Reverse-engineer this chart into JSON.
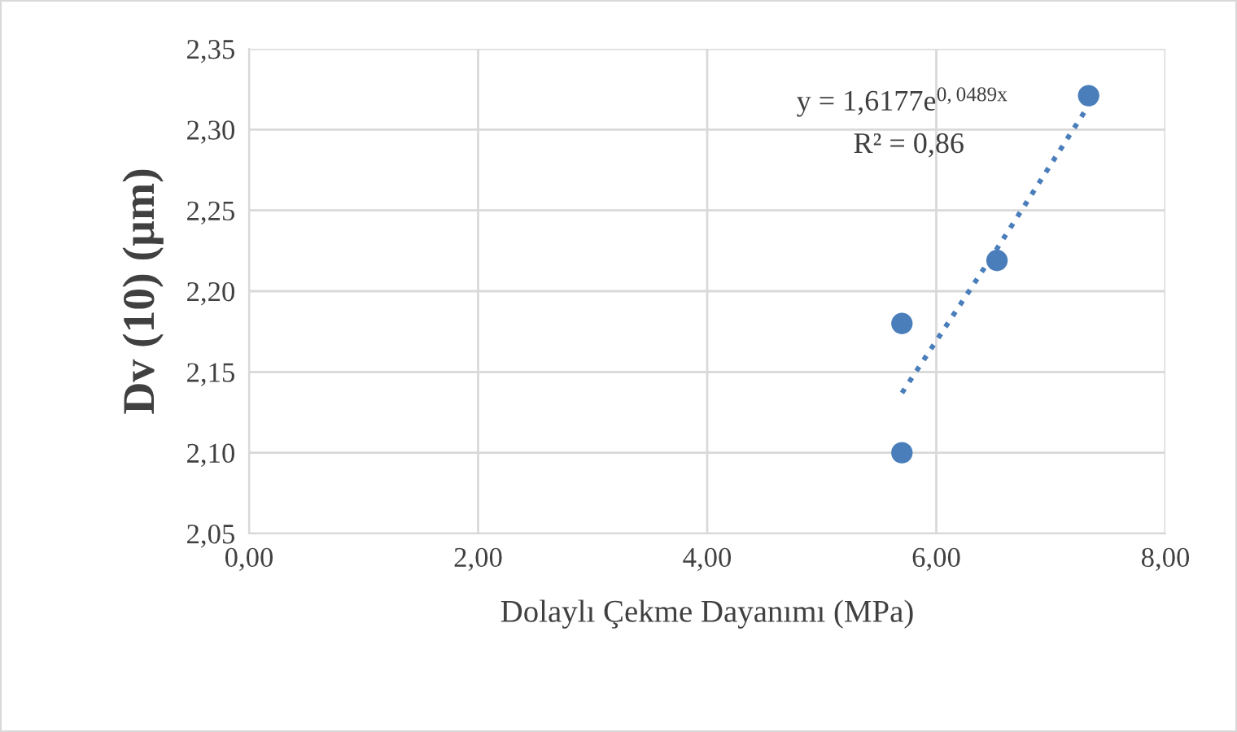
{
  "chart_data": {
    "type": "scatter",
    "xlabel": "Dolaylı Çekme Dayanımı (MPa)",
    "ylabel": "Dv (10) (µm)",
    "x": [
      5.7,
      5.7,
      6.53,
      7.33
    ],
    "series": [
      {
        "color": "#4a7ebb",
        "values": [
          2.18,
          2.1,
          2.219,
          2.321
        ],
        "marker": "circle"
      },
      {
        "type": "line",
        "color": "#4a7ebb",
        "x": [
          5.7,
          6.5,
          7.33
        ],
        "values": [
          2.137,
          2.223,
          2.315
        ],
        "line_style": "dotted",
        "marker": "none"
      }
    ],
    "annotations": [
      "y = 1,6177e$^{0,0489x}$",
      "R² = 0,86"
    ],
    "xlim": [
      0,
      8
    ],
    "ylim": [
      2.05,
      2.35
    ],
    "xticks": [
      {
        "value": 0,
        "label": "0,00"
      },
      {
        "value": 2,
        "label": "2,00"
      },
      {
        "value": 4,
        "label": "4,00"
      },
      {
        "value": 6,
        "label": "6,00"
      },
      {
        "value": 8,
        "label": "8,00"
      }
    ],
    "yticks": [
      {
        "value": 2.05,
        "label": "2,05"
      },
      {
        "value": 2.1,
        "label": "2,10"
      },
      {
        "value": 2.15,
        "label": "2,15"
      },
      {
        "value": 2.2,
        "label": "2,20"
      },
      {
        "value": 2.25,
        "label": "2,25"
      },
      {
        "value": 2.3,
        "label": "2,30"
      },
      {
        "value": 2.35,
        "label": "2,35"
      }
    ],
    "grid": true,
    "legend": false
  }
}
